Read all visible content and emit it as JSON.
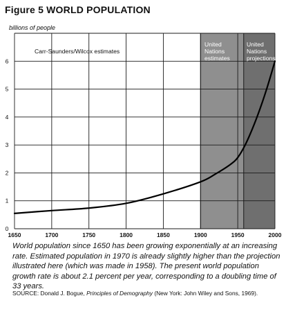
{
  "figure": {
    "title": "Figure 5 WORLD POPULATION",
    "units": "billions of people"
  },
  "colors": {
    "grid": "#1a1a1a",
    "un_estimates_band": "#8f8f8f",
    "un_projections_band": "#6f6f6f",
    "curve": "#000000"
  },
  "chart_data": {
    "type": "line",
    "xlabel": "",
    "ylabel": "billions of people",
    "xlim": [
      1650,
      2000
    ],
    "ylim": [
      0,
      7
    ],
    "x_ticks": [
      1650,
      1700,
      1750,
      1800,
      1850,
      1900,
      1950,
      2000
    ],
    "y_ticks": [
      0,
      1,
      2,
      3,
      4,
      5,
      6
    ],
    "grid": true,
    "regions": [
      {
        "label": "Carr-Saunders/Wilcox estimates",
        "x_start": 1650,
        "x_end": 1900
      },
      {
        "label": "United Nations estimates",
        "x_start": 1900,
        "x_end": 1958
      },
      {
        "label": "United Nations projections",
        "x_start": 1958,
        "x_end": 2000
      }
    ],
    "series": [
      {
        "x": [
          1650,
          1700,
          1750,
          1800,
          1850,
          1900,
          1920,
          1940,
          1950,
          1960,
          1970,
          1980,
          1990,
          2000
        ],
        "values": [
          0.55,
          0.65,
          0.74,
          0.91,
          1.25,
          1.68,
          1.96,
          2.3,
          2.55,
          3.0,
          3.6,
          4.3,
          5.1,
          6.0
        ]
      }
    ]
  },
  "caption": "World population since 1650 has been growing exponentially at an increasing rate. Estimated population in 1970 is already slightly higher than the projection illustrated here (which was made in 1958). The present world population growth rate is about 2.1 percent per year, corresponding to a doubling time of 33 years.",
  "source": {
    "prefix": "SOURCE: Donald J. Bogue,",
    "book": "Principles of Demography",
    "suffix": "(New York: John Wiley and Sons, 1969)."
  }
}
